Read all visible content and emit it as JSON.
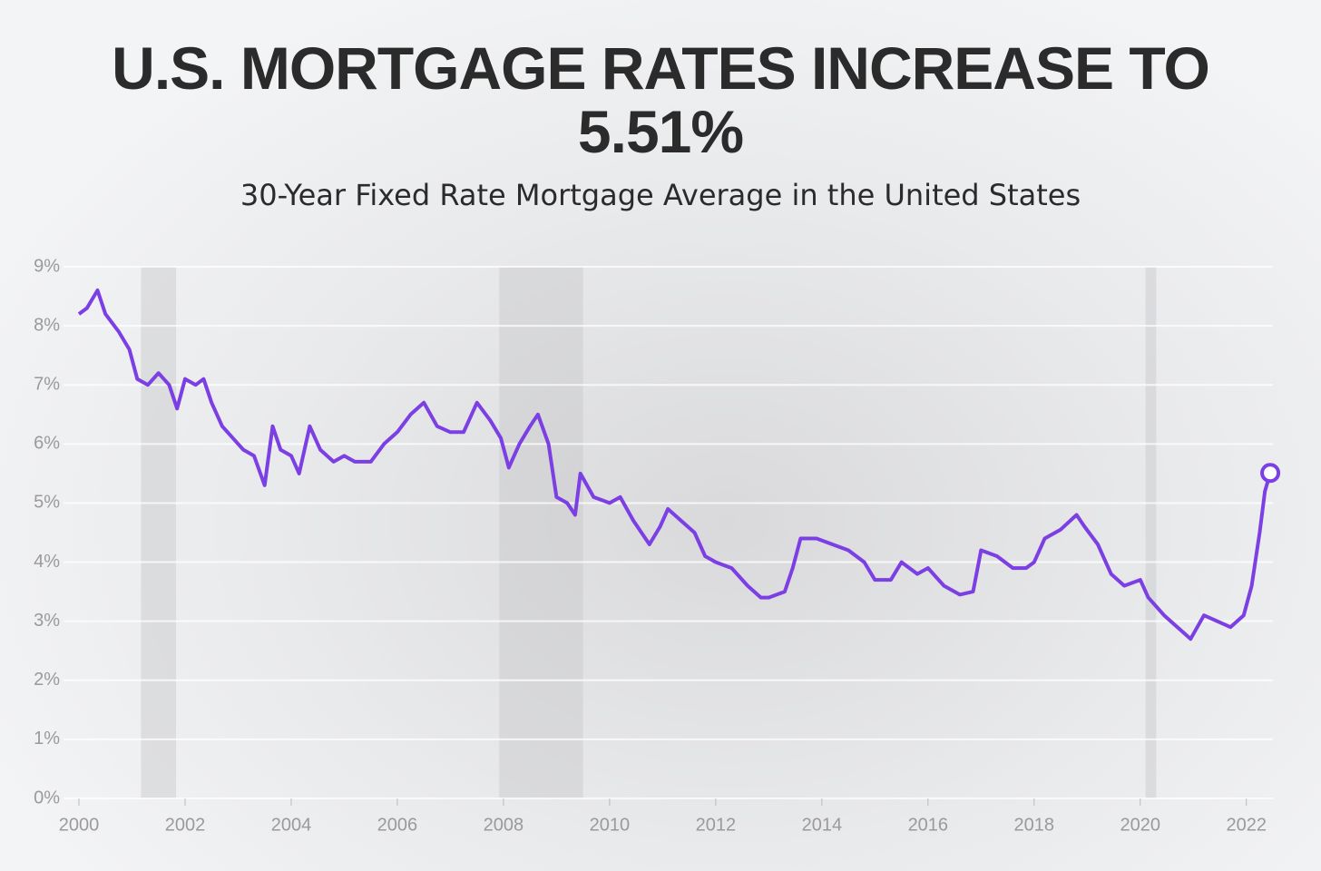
{
  "chart_data": {
    "type": "line",
    "title": "U.S. MORTGAGE RATES INCREASE TO 5.51%",
    "subtitle": "30-Year Fixed Rate Mortgage Average in the United States",
    "x": [
      2000.0,
      2000.15,
      2000.35,
      2000.5,
      2000.75,
      2000.95,
      2001.1,
      2001.3,
      2001.5,
      2001.7,
      2001.85,
      2002.0,
      2002.2,
      2002.35,
      2002.5,
      2002.7,
      2002.9,
      2003.1,
      2003.3,
      2003.5,
      2003.65,
      2003.8,
      2004.0,
      2004.15,
      2004.35,
      2004.55,
      2004.8,
      2005.0,
      2005.2,
      2005.5,
      2005.75,
      2006.0,
      2006.25,
      2006.5,
      2006.75,
      2007.0,
      2007.25,
      2007.5,
      2007.75,
      2007.95,
      2008.1,
      2008.3,
      2008.5,
      2008.65,
      2008.85,
      2009.0,
      2009.2,
      2009.35,
      2009.45,
      2009.7,
      2010.0,
      2010.2,
      2010.45,
      2010.75,
      2010.95,
      2011.1,
      2011.35,
      2011.6,
      2011.8,
      2012.0,
      2012.3,
      2012.6,
      2012.85,
      2013.0,
      2013.3,
      2013.45,
      2013.6,
      2013.9,
      2014.2,
      2014.5,
      2014.8,
      2015.0,
      2015.3,
      2015.5,
      2015.8,
      2016.0,
      2016.3,
      2016.6,
      2016.85,
      2017.0,
      2017.3,
      2017.6,
      2017.85,
      2018.0,
      2018.2,
      2018.5,
      2018.8,
      2018.95,
      2019.2,
      2019.45,
      2019.7,
      2020.0,
      2020.15,
      2020.45,
      2020.7,
      2020.95,
      2021.2,
      2021.45,
      2021.7,
      2021.95,
      2022.1,
      2022.25,
      2022.35,
      2022.45
    ],
    "values": [
      8.2,
      8.3,
      8.6,
      8.2,
      7.9,
      7.6,
      7.1,
      7.0,
      7.2,
      7.0,
      6.6,
      7.1,
      7.0,
      7.1,
      6.7,
      6.3,
      6.1,
      5.9,
      5.8,
      5.3,
      6.3,
      5.9,
      5.8,
      5.5,
      6.3,
      5.9,
      5.7,
      5.8,
      5.7,
      5.7,
      6.0,
      6.2,
      6.5,
      6.7,
      6.3,
      6.2,
      6.2,
      6.7,
      6.4,
      6.1,
      5.6,
      6.0,
      6.3,
      6.5,
      6.0,
      5.1,
      5.0,
      4.8,
      5.5,
      5.1,
      5.0,
      5.1,
      4.7,
      4.3,
      4.6,
      4.9,
      4.7,
      4.5,
      4.1,
      4.0,
      3.9,
      3.6,
      3.4,
      3.4,
      3.5,
      3.9,
      4.4,
      4.4,
      4.3,
      4.2,
      4.0,
      3.7,
      3.7,
      4.0,
      3.8,
      3.9,
      3.6,
      3.45,
      3.5,
      4.2,
      4.1,
      3.9,
      3.9,
      4.0,
      4.4,
      4.55,
      4.8,
      4.6,
      4.3,
      3.8,
      3.6,
      3.7,
      3.4,
      3.1,
      2.9,
      2.7,
      3.1,
      3.0,
      2.9,
      3.1,
      3.6,
      4.5,
      5.2,
      5.51
    ],
    "color": "#7b3fe4",
    "shaded_x_ranges": [
      [
        2001.17,
        2001.83
      ],
      [
        2007.92,
        2009.5
      ],
      [
        2020.1,
        2020.3
      ]
    ],
    "xlim": [
      2000,
      2022.5
    ],
    "xticks": [
      2000,
      2002,
      2004,
      2006,
      2008,
      2010,
      2012,
      2014,
      2016,
      2018,
      2020,
      2022
    ],
    "ylim": [
      0,
      9
    ],
    "yticks": [
      {
        "value": 0,
        "label": "0%"
      },
      {
        "value": 1,
        "label": "1%"
      },
      {
        "value": 2,
        "label": "2%"
      },
      {
        "value": 3,
        "label": "3%"
      },
      {
        "value": 4,
        "label": "4%"
      },
      {
        "value": 5,
        "label": "5%"
      },
      {
        "value": 6,
        "label": "6%"
      },
      {
        "value": 7,
        "label": "7%"
      },
      {
        "value": 8,
        "label": "8%"
      },
      {
        "value": 9,
        "label": "9%"
      }
    ],
    "grid": true
  }
}
